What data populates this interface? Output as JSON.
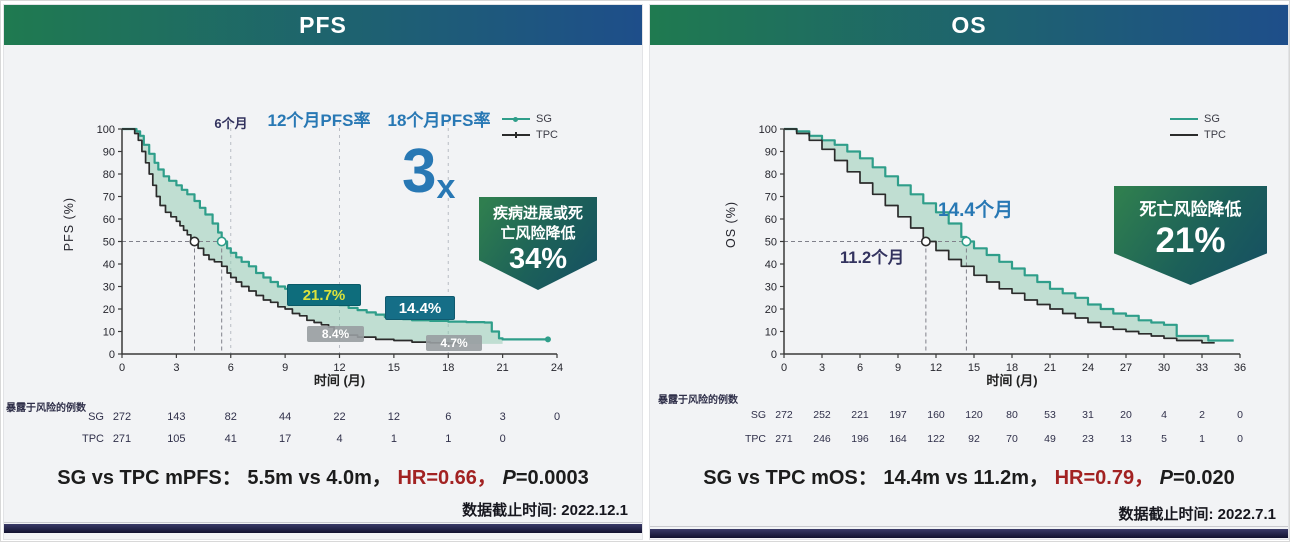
{
  "colors": {
    "header_gradient_from": "#1f7a50",
    "header_gradient_to": "#1e4e8a",
    "sg_curve": "#2f9e8a",
    "tpc_curve": "#2b2b2b",
    "fill_between": "#8dc9b0",
    "accent_blue": "#2878b4",
    "navy_text": "#32325e",
    "hr_red": "#a22222",
    "rate_box_teal": "#0e6d7c",
    "rate_box_teal2": "#156e87",
    "rate_box_gray": "#989da1",
    "rate_yellow_text": "#dce23c",
    "badge_gradient_from": "#2f7e4f",
    "badge_gradient_to": "#154e63",
    "bottom_bar": "#12122f"
  },
  "panels": [
    {
      "title": "PFS",
      "ylabel": "PFS (%)",
      "legend": {
        "sg": "SG",
        "tpc": "TPC"
      },
      "annotations": {
        "month6": "6个月",
        "rate12_title": "12个月PFS率",
        "rate18_title": "18个月PFS率",
        "multiplier": "3",
        "multiplier_suffix": "x",
        "badge_line1": "疾病进展或死",
        "badge_line2": "亡风险降低",
        "badge_value": "34%",
        "sg_12m_rate": "21.7%",
        "sg_18m_rate": "14.4%",
        "tpc_12m_rate": "8.4%",
        "tpc_18m_rate": "4.7%"
      },
      "summary": {
        "label": "SG vs TPC mPFS：",
        "values": "5.5m vs 4.0m，",
        "hr": "HR=0.66，",
        "p_name": "P",
        "p_rest": "=0.0003"
      },
      "cutoff": "数据截止时间: 2022.12.1"
    },
    {
      "title": "OS",
      "ylabel": "OS (%)",
      "legend": {
        "sg": "SG",
        "tpc": "TPC"
      },
      "annotations": {
        "median_sg": "14.4个月",
        "median_tpc": "11.2个月",
        "badge_line1": "死亡风险降低",
        "badge_value": "21%"
      },
      "summary": {
        "label": "SG vs TPC mOS：",
        "values": "14.4m vs 11.2m，",
        "hr": "HR=0.79，",
        "p_name": "P",
        "p_rest": "=0.020"
      },
      "cutoff": "数据截止时间: 2022.7.1"
    }
  ],
  "chart_data": [
    {
      "type": "line",
      "subtype": "kaplan_meier_step",
      "title": "PFS",
      "xlabel": "时间 (月)",
      "ylabel": "PFS (%)",
      "xlim": [
        0,
        24
      ],
      "ylim": [
        0,
        100
      ],
      "xticks": [
        0,
        3,
        6,
        9,
        12,
        15,
        18,
        21,
        24
      ],
      "yticks": [
        0,
        10,
        20,
        30,
        40,
        50,
        60,
        70,
        80,
        90,
        100
      ],
      "dashed_gridlines_x": [
        6,
        12,
        18
      ],
      "legend": [
        "SG",
        "TPC"
      ],
      "legend_position": "top-right",
      "medians_months": {
        "SG": 5.5,
        "TPC": 4.0
      },
      "landmark_rates_pct": {
        "12m": {
          "SG": 21.7,
          "TPC": 8.4
        },
        "18m": {
          "SG": 14.4,
          "TPC": 4.7
        }
      },
      "hazard_ratio": 0.66,
      "p_value": 0.0003,
      "fill_between": {
        "color": "#8dc9b0",
        "opacity": 0.5,
        "x_end": 21
      },
      "series": [
        {
          "name": "SG",
          "color": "#2f9e8a",
          "end_dot": true,
          "points": [
            [
              0,
              100
            ],
            [
              0.8,
              99
            ],
            [
              1,
              97
            ],
            [
              1.2,
              93
            ],
            [
              1.5,
              89
            ],
            [
              1.8,
              85
            ],
            [
              2,
              82
            ],
            [
              2.3,
              79
            ],
            [
              2.6,
              77
            ],
            [
              3,
              75
            ],
            [
              3.3,
              73
            ],
            [
              3.6,
              71
            ],
            [
              4,
              68
            ],
            [
              4.3,
              65
            ],
            [
              4.6,
              62
            ],
            [
              5,
              58
            ],
            [
              5.3,
              54
            ],
            [
              5.5,
              50
            ],
            [
              5.8,
              47
            ],
            [
              6,
              45
            ],
            [
              6.3,
              43
            ],
            [
              6.6,
              41
            ],
            [
              7,
              39
            ],
            [
              7.4,
              36
            ],
            [
              7.8,
              34
            ],
            [
              8.2,
              32
            ],
            [
              8.6,
              30
            ],
            [
              9,
              29
            ],
            [
              9.5,
              27
            ],
            [
              10,
              25
            ],
            [
              10.5,
              24
            ],
            [
              11,
              23
            ],
            [
              11.5,
              22
            ],
            [
              12,
              21.7
            ],
            [
              12.5,
              20.5
            ],
            [
              13,
              19.5
            ],
            [
              13.5,
              18.5
            ],
            [
              14,
              17.5
            ],
            [
              14.5,
              16.5
            ],
            [
              15,
              16
            ],
            [
              15.5,
              15.5
            ],
            [
              16,
              15
            ],
            [
              17,
              14.7
            ],
            [
              18,
              14.4
            ],
            [
              19,
              14.2
            ],
            [
              20,
              14
            ],
            [
              20.4,
              10
            ],
            [
              20.8,
              7
            ],
            [
              21,
              6.5
            ],
            [
              23.5,
              6.5
            ]
          ]
        },
        {
          "name": "TPC",
          "color": "#2b2b2b",
          "end_dot": false,
          "points": [
            [
              0,
              100
            ],
            [
              0.7,
              98
            ],
            [
              0.9,
              95
            ],
            [
              1.1,
              90
            ],
            [
              1.3,
              85
            ],
            [
              1.5,
              80
            ],
            [
              1.7,
              75
            ],
            [
              1.9,
              70
            ],
            [
              2.1,
              66
            ],
            [
              2.4,
              63
            ],
            [
              2.7,
              61
            ],
            [
              3,
              59
            ],
            [
              3.2,
              57
            ],
            [
              3.4,
              55
            ],
            [
              3.6,
              53
            ],
            [
              3.8,
              51
            ],
            [
              4,
              50
            ],
            [
              4.2,
              47
            ],
            [
              4.5,
              44
            ],
            [
              4.8,
              42
            ],
            [
              5.1,
              41
            ],
            [
              5.5,
              39
            ],
            [
              5.8,
              36
            ],
            [
              6,
              34
            ],
            [
              6.3,
              32
            ],
            [
              6.6,
              30
            ],
            [
              7,
              28
            ],
            [
              7.4,
              26
            ],
            [
              7.8,
              24
            ],
            [
              8.2,
              23
            ],
            [
              8.6,
              21
            ],
            [
              9,
              20
            ],
            [
              9.4,
              18
            ],
            [
              9.8,
              17
            ],
            [
              10.2,
              15
            ],
            [
              10.6,
              14
            ],
            [
              11,
              13
            ],
            [
              11.4,
              12
            ],
            [
              11.7,
              9
            ],
            [
              12,
              8.4
            ],
            [
              13,
              7.5
            ],
            [
              14,
              6.5
            ],
            [
              15,
              6
            ],
            [
              16,
              5.3
            ],
            [
              17,
              5
            ],
            [
              18,
              4.7
            ],
            [
              19,
              4.5
            ]
          ]
        }
      ],
      "number_at_risk": {
        "label": "暴露于风险的例数",
        "times": [
          0,
          3,
          6,
          9,
          12,
          15,
          18,
          21,
          24
        ],
        "rows": [
          {
            "name": "SG",
            "values": [
              272,
              143,
              82,
              44,
              22,
              12,
              6,
              3,
              0
            ]
          },
          {
            "name": "TPC",
            "values": [
              271,
              105,
              41,
              17,
              4,
              1,
              1,
              0
            ]
          }
        ]
      }
    },
    {
      "type": "line",
      "subtype": "kaplan_meier_step",
      "title": "OS",
      "xlabel": "时间 (月)",
      "ylabel": "OS (%)",
      "xlim": [
        0,
        36
      ],
      "ylim": [
        0,
        100
      ],
      "xticks": [
        0,
        3,
        6,
        9,
        12,
        15,
        18,
        21,
        24,
        27,
        30,
        33,
        36
      ],
      "yticks": [
        0,
        10,
        20,
        30,
        40,
        50,
        60,
        70,
        80,
        90,
        100
      ],
      "dashed_gridlines_x": [],
      "legend": [
        "SG",
        "TPC"
      ],
      "legend_position": "top-right",
      "medians_months": {
        "SG": 14.4,
        "TPC": 11.2
      },
      "hazard_ratio": 0.79,
      "p_value": 0.02,
      "fill_between": {
        "color": "#8dc9b0",
        "opacity": 0.5,
        "x_end": 34
      },
      "series": [
        {
          "name": "SG",
          "color": "#2f9e8a",
          "end_dot": false,
          "points": [
            [
              0,
              100
            ],
            [
              1,
              99
            ],
            [
              2,
              97
            ],
            [
              3,
              95
            ],
            [
              4,
              93
            ],
            [
              5,
              90
            ],
            [
              6,
              87
            ],
            [
              7,
              83
            ],
            [
              8,
              79
            ],
            [
              9,
              75
            ],
            [
              10,
              71
            ],
            [
              11,
              67
            ],
            [
              12,
              63
            ],
            [
              13,
              58
            ],
            [
              14,
              52
            ],
            [
              14.4,
              50
            ],
            [
              15,
              47
            ],
            [
              16,
              44
            ],
            [
              17,
              41
            ],
            [
              18,
              38
            ],
            [
              19,
              35
            ],
            [
              20,
              32
            ],
            [
              21,
              29
            ],
            [
              22,
              27
            ],
            [
              23,
              25
            ],
            [
              24,
              22
            ],
            [
              25,
              20
            ],
            [
              26,
              18
            ],
            [
              27,
              17
            ],
            [
              28,
              15
            ],
            [
              29,
              14
            ],
            [
              30,
              13
            ],
            [
              31,
              8
            ],
            [
              33,
              8
            ],
            [
              33.5,
              6
            ],
            [
              35.5,
              6
            ]
          ]
        },
        {
          "name": "TPC",
          "color": "#2b2b2b",
          "end_dot": false,
          "points": [
            [
              0,
              100
            ],
            [
              1,
              98
            ],
            [
              2,
              95
            ],
            [
              3,
              91
            ],
            [
              4,
              86
            ],
            [
              5,
              81
            ],
            [
              6,
              76
            ],
            [
              7,
              71
            ],
            [
              8,
              66
            ],
            [
              9,
              61
            ],
            [
              10,
              56
            ],
            [
              11,
              51
            ],
            [
              11.2,
              50
            ],
            [
              12,
              46
            ],
            [
              13,
              42
            ],
            [
              14,
              39
            ],
            [
              15,
              35
            ],
            [
              16,
              32
            ],
            [
              17,
              29
            ],
            [
              18,
              27
            ],
            [
              19,
              24
            ],
            [
              20,
              22
            ],
            [
              21,
              20
            ],
            [
              22,
              18
            ],
            [
              23,
              16
            ],
            [
              24,
              14
            ],
            [
              25,
              12
            ],
            [
              26,
              11
            ],
            [
              27,
              10
            ],
            [
              28,
              9
            ],
            [
              29,
              8
            ],
            [
              30,
              7
            ],
            [
              31,
              6
            ],
            [
              33,
              5
            ],
            [
              34,
              5
            ]
          ]
        }
      ],
      "number_at_risk": {
        "label": "暴露于风险的例数",
        "times": [
          0,
          3,
          6,
          9,
          12,
          15,
          18,
          21,
          24,
          27,
          30,
          33,
          36
        ],
        "rows": [
          {
            "name": "SG",
            "values": [
              272,
              252,
              221,
              197,
              160,
              120,
              80,
              53,
              31,
              20,
              4,
              2,
              0
            ]
          },
          {
            "name": "TPC",
            "values": [
              271,
              246,
              196,
              164,
              122,
              92,
              70,
              49,
              23,
              13,
              5,
              1,
              0
            ]
          }
        ]
      }
    }
  ]
}
